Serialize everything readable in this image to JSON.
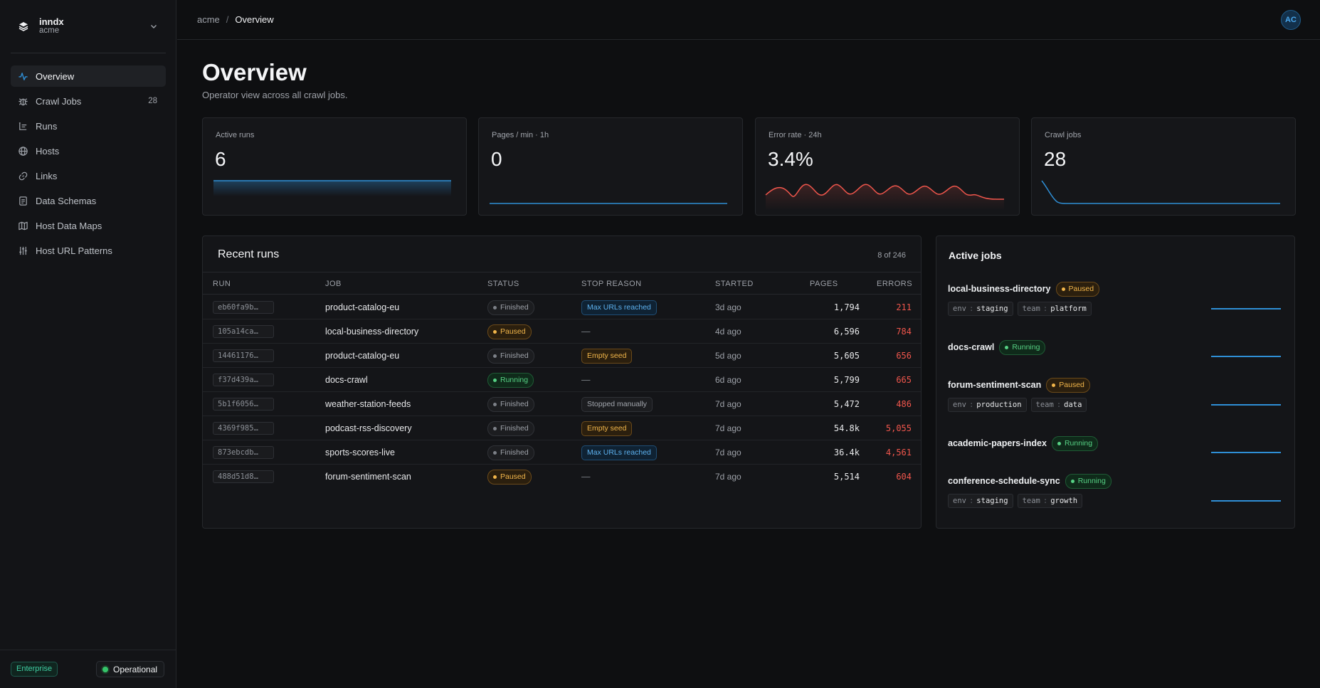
{
  "sidebar": {
    "org_name": "inndx",
    "org_sub": "acme",
    "items": [
      {
        "label": "Overview",
        "icon": "activity-icon",
        "count": ""
      },
      {
        "label": "Crawl Jobs",
        "icon": "bug-icon",
        "count": "28"
      },
      {
        "label": "Runs",
        "icon": "list-icon",
        "count": ""
      },
      {
        "label": "Hosts",
        "icon": "globe-icon",
        "count": ""
      },
      {
        "label": "Links",
        "icon": "link-icon",
        "count": ""
      },
      {
        "label": "Data Schemas",
        "icon": "document-icon",
        "count": ""
      },
      {
        "label": "Host Data Maps",
        "icon": "map-icon",
        "count": ""
      },
      {
        "label": "Host URL Patterns",
        "icon": "sliders-icon",
        "count": ""
      }
    ],
    "tier": "Enterprise",
    "status": "Operational"
  },
  "topbar": {
    "crumb_root": "acme",
    "crumb_sep": "/",
    "crumb_current": "Overview",
    "avatar": "AC"
  },
  "page": {
    "title": "Overview",
    "subtitle": "Operator view across all crawl jobs."
  },
  "kpis": [
    {
      "label": "Active runs",
      "value": "6",
      "color": "#2f8fd6"
    },
    {
      "label": "Pages / min · 1h",
      "value": "0",
      "color": "#2f8fd6"
    },
    {
      "label": "Error rate · 24h",
      "value": "3.4%",
      "color": "#f0564c"
    },
    {
      "label": "Crawl jobs",
      "value": "28",
      "color": "#2f8fd6"
    }
  ],
  "recent_runs": {
    "title": "Recent runs",
    "count": "8 of 246",
    "columns": [
      "RUN",
      "JOB",
      "STATUS",
      "STOP REASON",
      "STARTED",
      "PAGES",
      "ERRORS"
    ],
    "rows": [
      {
        "run": "eb60fa9b…",
        "job": "product-catalog-eu",
        "status": "Finished",
        "reason": "Max URLs reached",
        "started": "3d ago",
        "pages": "1,794",
        "errors": "211"
      },
      {
        "run": "105a14ca…",
        "job": "local-business-directory",
        "status": "Paused",
        "reason": "—",
        "started": "4d ago",
        "pages": "6,596",
        "errors": "784"
      },
      {
        "run": "14461176…",
        "job": "product-catalog-eu",
        "status": "Finished",
        "reason": "Empty seed",
        "started": "5d ago",
        "pages": "5,605",
        "errors": "656"
      },
      {
        "run": "f37d439a…",
        "job": "docs-crawl",
        "status": "Running",
        "reason": "—",
        "started": "6d ago",
        "pages": "5,799",
        "errors": "665"
      },
      {
        "run": "5b1f6056…",
        "job": "weather-station-feeds",
        "status": "Finished",
        "reason": "Stopped manually",
        "started": "7d ago",
        "pages": "5,472",
        "errors": "486"
      },
      {
        "run": "4369f985…",
        "job": "podcast-rss-discovery",
        "status": "Finished",
        "reason": "Empty seed",
        "started": "7d ago",
        "pages": "54.8k",
        "errors": "5,055"
      },
      {
        "run": "873ebcdb…",
        "job": "sports-scores-live",
        "status": "Finished",
        "reason": "Max URLs reached",
        "started": "7d ago",
        "pages": "36.4k",
        "errors": "4,561"
      },
      {
        "run": "488d51d8…",
        "job": "forum-sentiment-scan",
        "status": "Paused",
        "reason": "—",
        "started": "7d ago",
        "pages": "5,514",
        "errors": "604"
      }
    ]
  },
  "active_jobs": {
    "title": "Active jobs",
    "jobs": [
      {
        "name": "local-business-directory",
        "status": "Paused",
        "tags": [
          {
            "k": "env",
            "v": "staging"
          },
          {
            "k": "team",
            "v": "platform"
          }
        ]
      },
      {
        "name": "docs-crawl",
        "status": "Running",
        "tags": []
      },
      {
        "name": "forum-sentiment-scan",
        "status": "Paused",
        "tags": [
          {
            "k": "env",
            "v": "production"
          },
          {
            "k": "team",
            "v": "data"
          }
        ]
      },
      {
        "name": "academic-papers-index",
        "status": "Running",
        "tags": []
      },
      {
        "name": "conference-schedule-sync",
        "status": "Running",
        "tags": [
          {
            "k": "env",
            "v": "staging"
          },
          {
            "k": "team",
            "v": "growth"
          }
        ]
      }
    ]
  }
}
